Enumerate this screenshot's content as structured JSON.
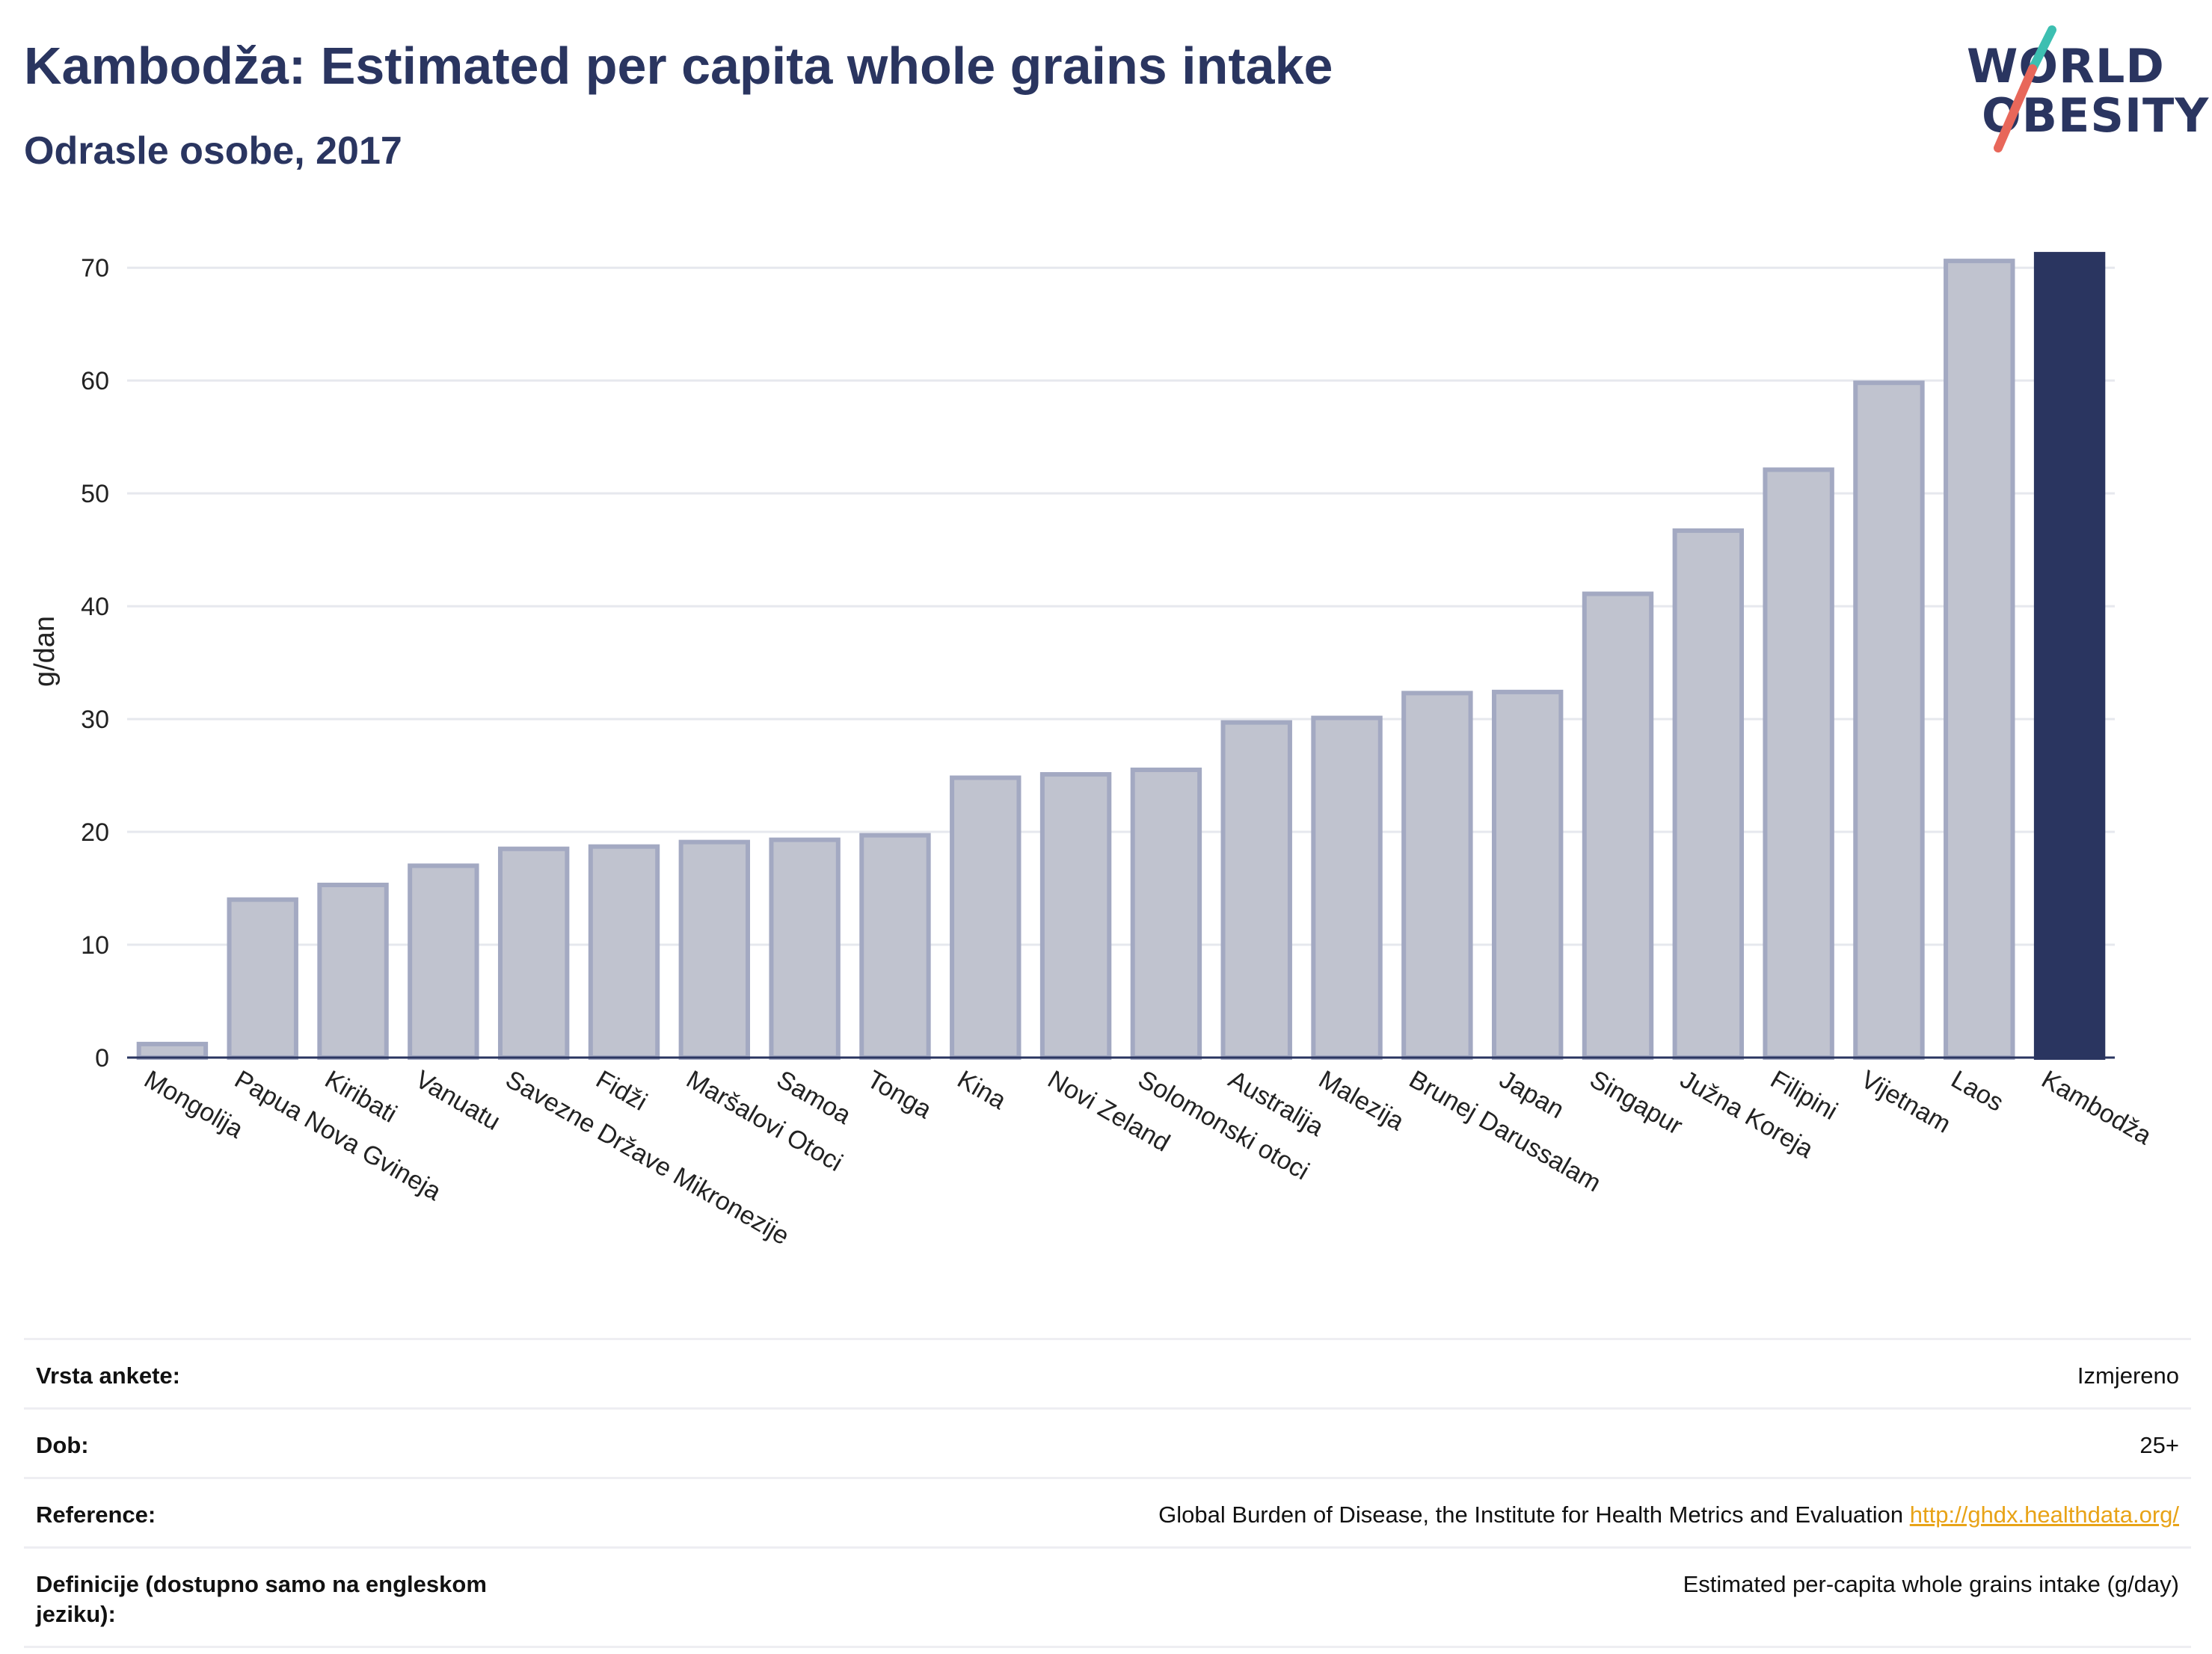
{
  "header": {
    "title": "Kambodža: Estimated per capita whole grains intake",
    "subtitle": "Odrasle osobe, 2017"
  },
  "logo": {
    "line1": "WORLD",
    "line2": "OBESITY",
    "accent_teal": "#3dbfb1",
    "accent_red": "#e8675a"
  },
  "chart_data": {
    "type": "bar",
    "title": "Kambodža: Estimated per capita whole grains intake",
    "subtitle": "Odrasle osobe, 2017",
    "ylabel": "g/dan",
    "ylim": [
      0,
      72
    ],
    "yticks": [
      0,
      10,
      20,
      30,
      40,
      50,
      60,
      70
    ],
    "grid": true,
    "categories": [
      "Mongolija",
      "Papua Nova Gvineja",
      "Kiribati",
      "Vanuatu",
      "Savezne Države Mikronezije",
      "Fidži",
      "Maršalovi Otoci",
      "Samoa",
      "Tonga",
      "Kina",
      "Novi Zeland",
      "Solomonski otoci",
      "Australija",
      "Malezija",
      "Brunej Darussalam",
      "Japan",
      "Singapur",
      "Južna Koreja",
      "Filipini",
      "Vijetnam",
      "Laos",
      "Kambodža"
    ],
    "values": [
      1.2,
      14.0,
      15.3,
      17.0,
      18.5,
      18.7,
      19.1,
      19.3,
      19.7,
      24.8,
      25.1,
      25.5,
      29.7,
      30.1,
      32.3,
      32.4,
      41.1,
      46.7,
      52.1,
      59.8,
      70.6,
      71.2
    ],
    "highlight": "Kambodža",
    "bar_color": "#c0c3cf",
    "bar_edge_color": "#a3a9c2",
    "highlight_color": "#2a3560"
  },
  "info": {
    "rows": [
      {
        "label": "Vrsta ankete:",
        "value": "Izmjereno"
      },
      {
        "label": "Dob:",
        "value": "25+"
      },
      {
        "label": "Reference:",
        "value": "Global Burden of Disease, the Institute for Health Metrics and Evaluation",
        "link": "http://ghdx.healthdata.org/"
      },
      {
        "label": "Definicije (dostupno samo na engleskom jeziku):",
        "value": "Estimated per-capita whole grains intake (g/day)"
      }
    ]
  }
}
